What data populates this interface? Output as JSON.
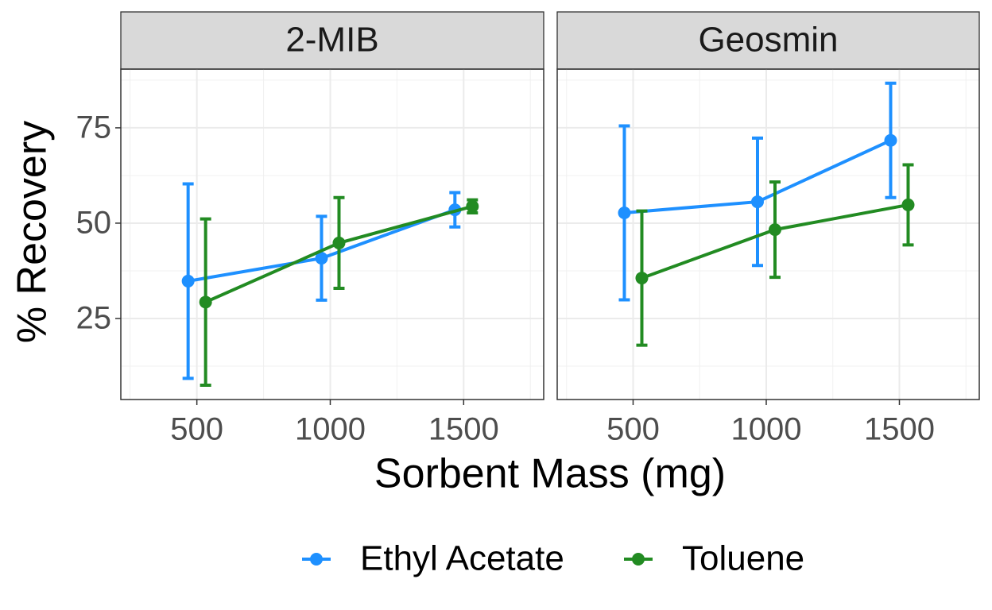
{
  "chart_data": {
    "type": "line",
    "x_label": "Sorbent Mass (mg)",
    "y_label": "% Recovery",
    "x": [
      500,
      1000,
      1500
    ],
    "xlim": [
      215,
      1800
    ],
    "xticks": [
      500,
      1000,
      1500
    ],
    "minor_xticks": [
      250,
      750,
      1250,
      1750
    ],
    "ylim": [
      3.75,
      90.4
    ],
    "yticks": [
      25,
      50,
      75
    ],
    "minor_yticks": [
      12.5,
      37.5,
      62.5,
      87.5
    ],
    "grid": true,
    "legend": "bottom",
    "series": [
      {
        "name": "Ethyl Acetate",
        "color": "#1e90ff"
      },
      {
        "name": "Toluene",
        "color": "#228b22"
      }
    ],
    "facets": [
      {
        "title": "2-MIB",
        "series": [
          {
            "values": [
              34.8,
              40.8,
              53.5
            ],
            "errors": [
              25.5,
              11,
              4.5
            ]
          },
          {
            "values": [
              29.3,
              44.8,
              54.4
            ],
            "errors": [
              21.8,
              11.9,
              1.7
            ]
          }
        ]
      },
      {
        "title": "Geosmin",
        "series": [
          {
            "values": [
              52.7,
              55.6,
              71.7
            ],
            "errors": [
              22.8,
              16.7,
              15
            ]
          },
          {
            "values": [
              35.6,
              48.3,
              54.8
            ],
            "errors": [
              17.6,
              12.5,
              10.5
            ]
          }
        ]
      }
    ]
  }
}
